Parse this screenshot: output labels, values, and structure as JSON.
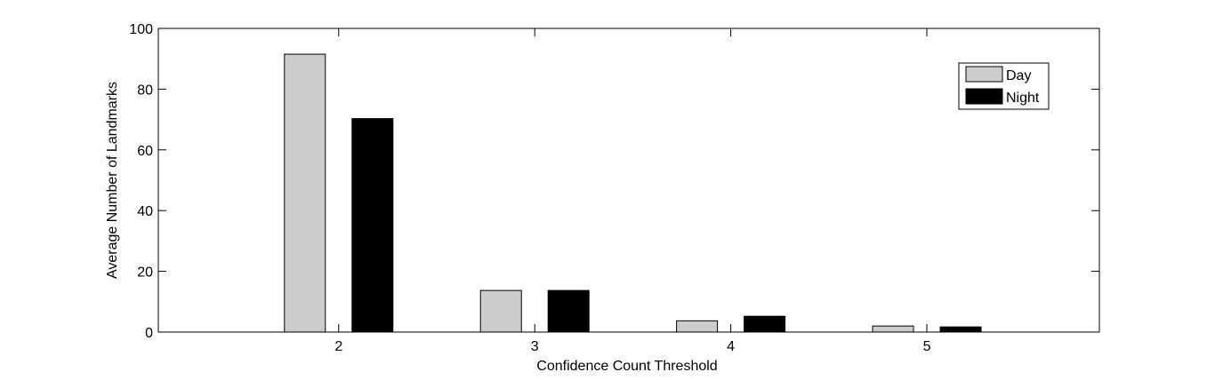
{
  "chart_data": {
    "type": "bar",
    "categories": [
      "2",
      "3",
      "4",
      "5"
    ],
    "series": [
      {
        "name": "Day",
        "values": [
          91.5,
          13.7,
          3.7,
          2.0
        ],
        "color": "#cccccc"
      },
      {
        "name": "Night",
        "values": [
          70.3,
          13.7,
          5.2,
          1.7
        ],
        "color": "#000000"
      }
    ],
    "x_ticks": [
      "2",
      "3",
      "4",
      "5"
    ],
    "y_ticks": [
      "0",
      "20",
      "40",
      "60",
      "80",
      "100"
    ],
    "ylim": [
      0,
      100
    ],
    "xlabel": "Confidence Count Threshold",
    "ylabel": "Average Number of Landmarks",
    "legend_position": "top-right",
    "grid": false
  }
}
